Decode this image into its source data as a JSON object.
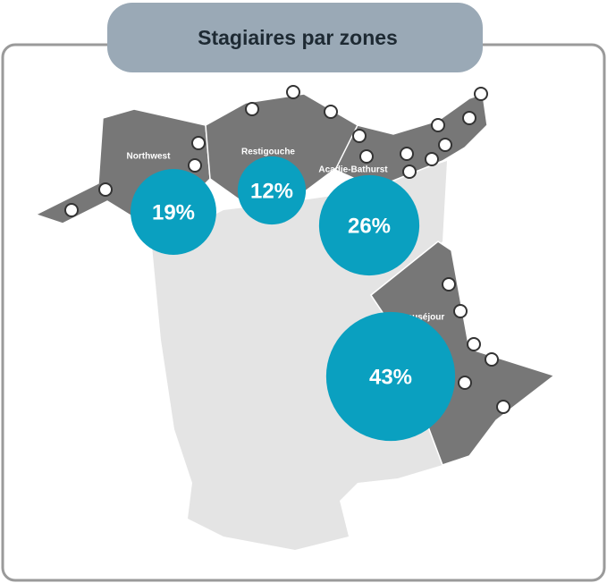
{
  "title": "Stagiaires par zones",
  "regions": [
    {
      "label": "Northwest",
      "value": 19,
      "value_label": "19%"
    },
    {
      "label": "Restigouche",
      "value": 12,
      "value_label": "12%"
    },
    {
      "label": "Acadie-Bathurst",
      "value": 26,
      "value_label": "26%"
    },
    {
      "label": "Beauséjour",
      "value": 43,
      "value_label": "43%"
    }
  ],
  "bubble_color": "#0aa0c0"
}
